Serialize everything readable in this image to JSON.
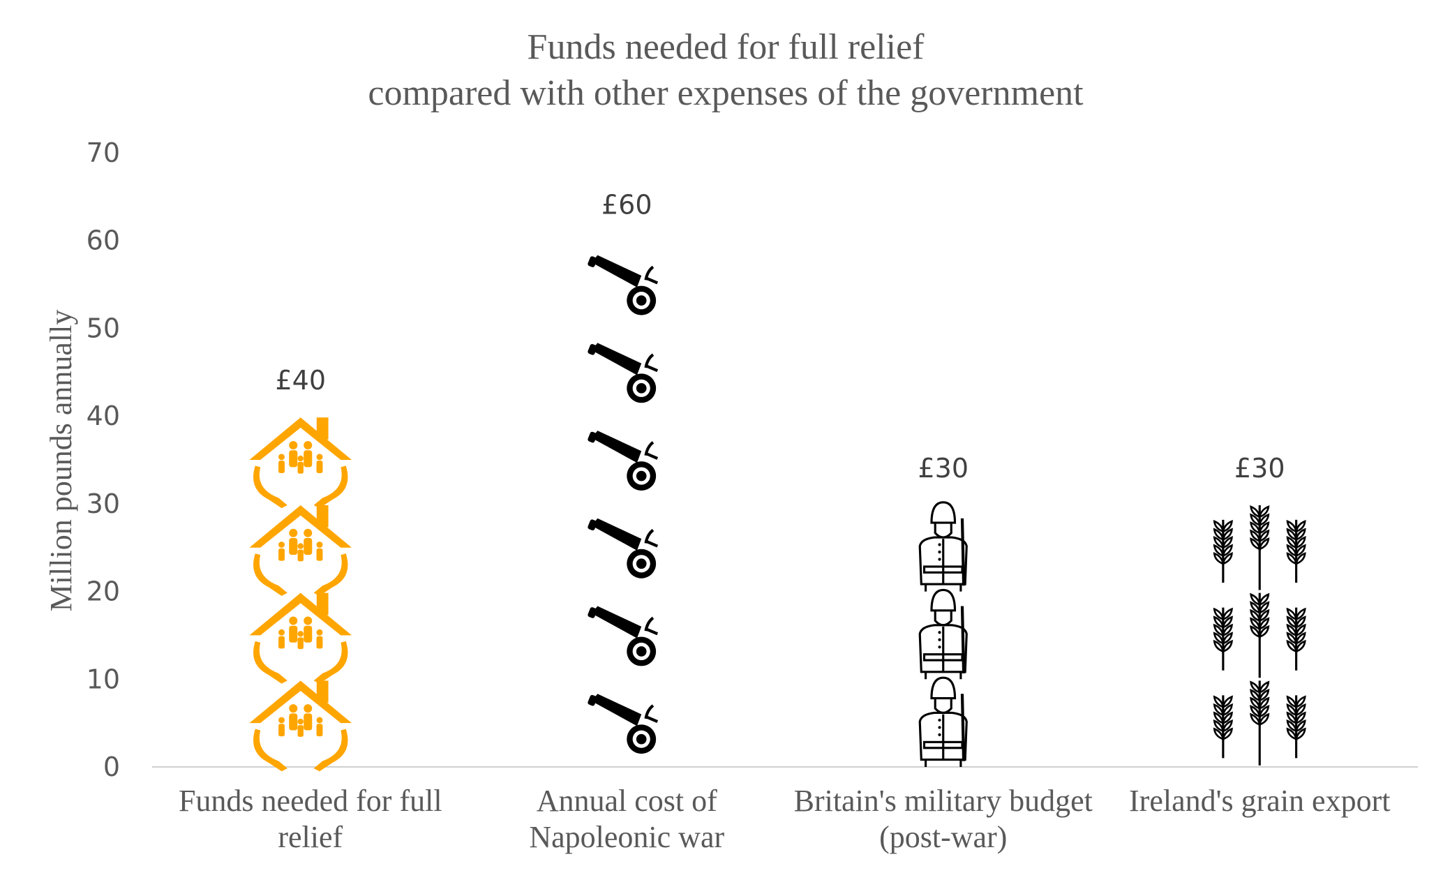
{
  "chart_data": {
    "type": "bar",
    "title_lines": [
      "Funds needed for full relief",
      "compared with other expenses of the government"
    ],
    "ylabel": "Million pounds annually",
    "xlabel": "",
    "ylim": [
      0,
      70
    ],
    "yticks": [
      0,
      10,
      20,
      30,
      40,
      50,
      60,
      70
    ],
    "grid": false,
    "unit_per_icon": 10,
    "categories": [
      {
        "label_lines": [
          "Funds needed for full",
          "relief"
        ],
        "value": 40,
        "data_label": "£40",
        "icon": "house-family-icon",
        "color": "#FFA500"
      },
      {
        "label_lines": [
          "Annual cost of",
          "Napoleonic war"
        ],
        "value": 60,
        "data_label": "£60",
        "icon": "cannon-icon",
        "color": "#000000"
      },
      {
        "label_lines": [
          "Britain's military budget",
          "(post-war)"
        ],
        "value": 30,
        "data_label": "£30",
        "icon": "soldier-icon",
        "color": "#000000"
      },
      {
        "label_lines": [
          "Ireland's grain export"
        ],
        "value": 30,
        "data_label": "£30",
        "icon": "wheat-icon",
        "color": "#000000"
      }
    ]
  }
}
